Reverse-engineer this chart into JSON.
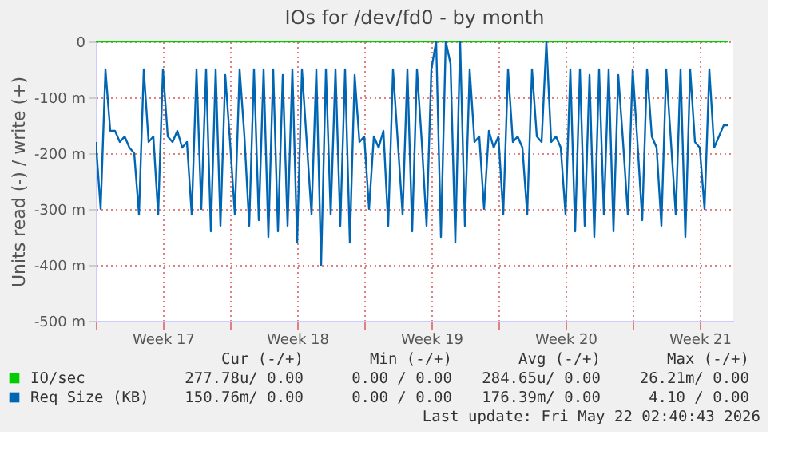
{
  "chart_data": {
    "type": "line",
    "title": "IOs for /dev/fd0 - by month",
    "ylabel": "Units read (-) / write (+)",
    "xlim": [
      "2026-04-20",
      "2026-05-23T06:00"
    ],
    "xticks": [
      {
        "value": "2026-04-20",
        "label": null
      },
      {
        "value": "2026-04-23T12:00",
        "label": "Week 17"
      },
      {
        "value": "2026-04-27",
        "label": null
      },
      {
        "value": "2026-04-30T12:00",
        "label": "Week 18"
      },
      {
        "value": "2026-05-04",
        "label": null
      },
      {
        "value": "2026-05-07T12:00",
        "label": "Week 19"
      },
      {
        "value": "2026-05-11",
        "label": null
      },
      {
        "value": "2026-05-14T12:00",
        "label": "Week 20"
      },
      {
        "value": "2026-05-18",
        "label": null
      },
      {
        "value": "2026-05-21T12:00",
        "label": "Week 21"
      }
    ],
    "ylim": [
      -500,
      0
    ],
    "yticks": [
      {
        "value": -500,
        "label": "-500 m"
      },
      {
        "value": -400,
        "label": "-400 m"
      },
      {
        "value": -300,
        "label": "-300 m"
      },
      {
        "value": -200,
        "label": "-200 m"
      },
      {
        "value": -100,
        "label": "-100 m"
      },
      0
    ],
    "grid": true,
    "legend": "bottom",
    "series": [
      {
        "name": "IO/sec",
        "color": "#00cc00",
        "x": [
          "2026-04-20",
          "2026-05-23"
        ],
        "values": [
          0,
          0
        ]
      },
      {
        "name": "Req Size (KB)",
        "color": "#0066b3",
        "x": [
          "2026-04-20T00:00",
          "2026-04-20T06:00",
          "2026-04-20T12:00",
          "2026-04-20T18:00",
          "2026-04-21T00:00",
          "2026-04-21T06:00",
          "2026-04-21T12:00",
          "2026-04-21T18:00",
          "2026-04-22T00:00",
          "2026-04-22T06:00",
          "2026-04-22T12:00",
          "2026-04-22T18:00",
          "2026-04-23T00:00",
          "2026-04-23T06:00",
          "2026-04-23T12:00",
          "2026-04-23T18:00",
          "2026-04-24T00:00",
          "2026-04-24T06:00",
          "2026-04-24T12:00",
          "2026-04-24T18:00",
          "2026-04-25T00:00",
          "2026-04-25T06:00",
          "2026-04-25T12:00",
          "2026-04-25T18:00",
          "2026-04-26T00:00",
          "2026-04-26T06:00",
          "2026-04-26T12:00",
          "2026-04-26T18:00",
          "2026-04-27T00:00",
          "2026-04-27T06:00",
          "2026-04-27T12:00",
          "2026-04-27T18:00",
          "2026-04-28T00:00",
          "2026-04-28T06:00",
          "2026-04-28T12:00",
          "2026-04-28T18:00",
          "2026-04-29T00:00",
          "2026-04-29T06:00",
          "2026-04-29T12:00",
          "2026-04-29T18:00",
          "2026-04-30T00:00",
          "2026-04-30T06:00",
          "2026-04-30T12:00",
          "2026-04-30T18:00",
          "2026-05-01T00:00",
          "2026-05-01T06:00",
          "2026-05-01T12:00",
          "2026-05-01T18:00",
          "2026-05-02T00:00",
          "2026-05-02T06:00",
          "2026-05-02T12:00",
          "2026-05-02T18:00",
          "2026-05-03T00:00",
          "2026-05-03T06:00",
          "2026-05-03T12:00",
          "2026-05-03T18:00",
          "2026-05-04T00:00",
          "2026-05-04T06:00",
          "2026-05-04T12:00",
          "2026-05-04T18:00",
          "2026-05-05T00:00",
          "2026-05-05T06:00",
          "2026-05-05T12:00",
          "2026-05-05T18:00",
          "2026-05-06T00:00",
          "2026-05-06T06:00",
          "2026-05-06T12:00",
          "2026-05-06T18:00",
          "2026-05-07T00:00",
          "2026-05-07T06:00",
          "2026-05-07T12:00",
          "2026-05-07T18:00",
          "2026-05-08T00:00",
          "2026-05-08T06:00",
          "2026-05-08T12:00",
          "2026-05-08T18:00",
          "2026-05-09T00:00",
          "2026-05-09T06:00",
          "2026-05-09T12:00",
          "2026-05-09T18:00",
          "2026-05-10T00:00",
          "2026-05-10T06:00",
          "2026-05-10T12:00",
          "2026-05-10T18:00",
          "2026-05-11T00:00",
          "2026-05-11T06:00",
          "2026-05-11T12:00",
          "2026-05-11T18:00",
          "2026-05-12T00:00",
          "2026-05-12T06:00",
          "2026-05-12T12:00",
          "2026-05-12T18:00",
          "2026-05-13T00:00",
          "2026-05-13T06:00",
          "2026-05-13T12:00",
          "2026-05-13T18:00",
          "2026-05-14T00:00",
          "2026-05-14T06:00",
          "2026-05-14T12:00",
          "2026-05-14T18:00",
          "2026-05-15T00:00",
          "2026-05-15T06:00",
          "2026-05-15T12:00",
          "2026-05-15T18:00",
          "2026-05-16T00:00",
          "2026-05-16T06:00",
          "2026-05-16T12:00",
          "2026-05-16T18:00",
          "2026-05-17T00:00",
          "2026-05-17T06:00",
          "2026-05-17T12:00",
          "2026-05-17T18:00",
          "2026-05-18T00:00",
          "2026-05-18T06:00",
          "2026-05-18T12:00",
          "2026-05-18T18:00",
          "2026-05-19T00:00",
          "2026-05-19T06:00",
          "2026-05-19T12:00",
          "2026-05-19T18:00",
          "2026-05-20T00:00",
          "2026-05-20T06:00",
          "2026-05-20T12:00",
          "2026-05-20T18:00",
          "2026-05-21T00:00",
          "2026-05-21T06:00",
          "2026-05-21T12:00",
          "2026-05-21T18:00",
          "2026-05-22T00:00",
          "2026-05-22T06:00",
          "2026-05-22T12:00",
          "2026-05-22T18:00",
          "2026-05-23T00:00"
        ],
        "values": [
          -180,
          -300,
          -50,
          -160,
          -160,
          -180,
          -170,
          -190,
          -200,
          -310,
          -50,
          -180,
          -170,
          -310,
          -50,
          -170,
          -180,
          -160,
          -190,
          -180,
          -310,
          -50,
          -300,
          -50,
          -340,
          -50,
          -330,
          -60,
          -180,
          -310,
          -50,
          -170,
          -330,
          -50,
          -320,
          -50,
          -350,
          -50,
          -340,
          -60,
          -330,
          -50,
          -360,
          -50,
          -180,
          -310,
          -50,
          -400,
          -50,
          -310,
          -50,
          -330,
          -50,
          -360,
          -60,
          -180,
          -170,
          -300,
          -170,
          -190,
          -160,
          -330,
          -50,
          -180,
          -310,
          -50,
          -340,
          -50,
          -180,
          -330,
          -50,
          0,
          -350,
          0,
          -40,
          -360,
          0,
          -330,
          -50,
          -180,
          -170,
          -300,
          -160,
          -190,
          -170,
          -310,
          -50,
          -180,
          -170,
          -190,
          -310,
          -50,
          -170,
          -180,
          0,
          -180,
          -170,
          -190,
          -310,
          -50,
          -340,
          -50,
          -330,
          -60,
          -350,
          -50,
          -310,
          -50,
          -340,
          -60,
          -180,
          -310,
          -50,
          -180,
          -320,
          -50,
          -170,
          -190,
          -330,
          -50,
          -180,
          -310,
          -50,
          -350,
          -50,
          -180,
          -190,
          -300,
          -50,
          -190,
          -170,
          -150,
          -150
        ]
      }
    ],
    "annotations": [
      "Cur (-/+)",
      "Min (-/+)",
      "Avg (-/+)",
      "Max (-/+)",
      "277.78u/ 0.00",
      "0.00 / 0.00",
      "284.65u/ 0.00",
      "26.21m/ 0.00",
      "150.76m/ 0.00",
      "0.00 / 0.00",
      "176.39m/ 0.00",
      "4.10 / 0.00",
      "Last update: Fri May 22 02:40:43 2026"
    ]
  }
}
